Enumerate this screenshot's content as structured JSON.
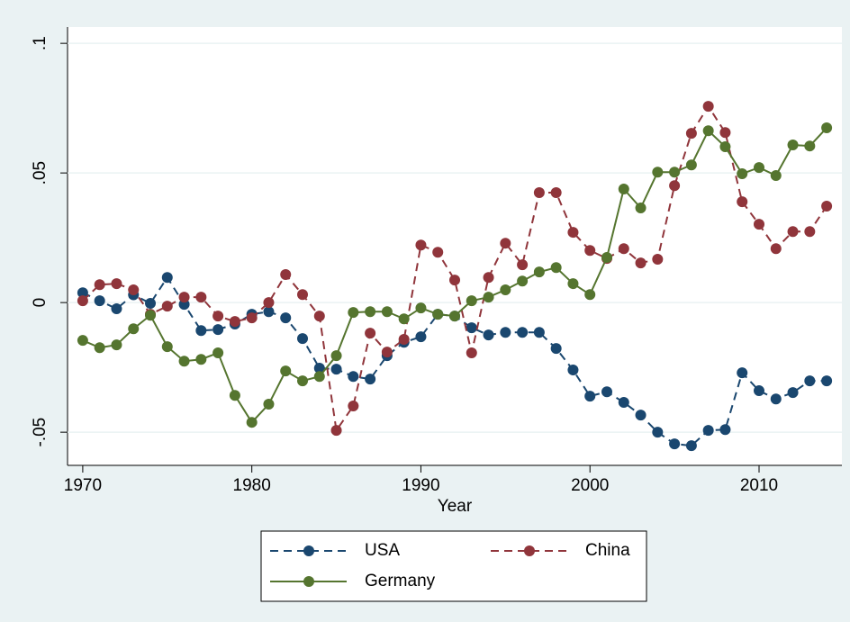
{
  "chart_data": {
    "type": "line",
    "x": [
      1970,
      1971,
      1972,
      1973,
      1974,
      1975,
      1976,
      1977,
      1978,
      1979,
      1980,
      1981,
      1982,
      1983,
      1984,
      1985,
      1986,
      1987,
      1988,
      1989,
      1990,
      1991,
      1992,
      1993,
      1994,
      1995,
      1996,
      1997,
      1998,
      1999,
      2000,
      2001,
      2002,
      2003,
      2004,
      2005,
      2006,
      2007,
      2008,
      2009,
      2010,
      2011,
      2012,
      2013,
      2014
    ],
    "xlabel": "Year",
    "xlim": [
      1969.1,
      2014.9
    ],
    "xticks": [
      1970,
      1980,
      1990,
      2000,
      2010
    ],
    "ylim": [
      -0.0628,
      0.1063
    ],
    "yticks": [
      {
        "value": -0.05,
        "label": "-.05"
      },
      0,
      {
        "value": 0.05,
        "label": ".05"
      },
      {
        "value": 0.1,
        "label": ".1"
      }
    ],
    "grid": true,
    "legend": "bottom",
    "series": [
      {
        "name": "USA",
        "color": "#1a476f",
        "style": "dashed",
        "values": [
          0.0038,
          0.0007,
          -0.0024,
          0.003,
          -0.0003,
          0.0097,
          -0.0007,
          -0.0108,
          -0.0104,
          -0.0083,
          -0.0045,
          -0.0035,
          -0.0059,
          -0.0139,
          -0.0253,
          -0.0257,
          -0.0285,
          -0.0295,
          -0.0205,
          -0.0153,
          -0.0132,
          -0.0045,
          -0.0052,
          -0.0097,
          -0.0125,
          -0.0115,
          -0.0115,
          -0.0115,
          -0.0177,
          -0.026,
          -0.0361,
          -0.0344,
          -0.0385,
          -0.0434,
          -0.05,
          -0.0545,
          -0.0552,
          -0.0493,
          -0.049,
          -0.0271,
          -0.034,
          -0.0372,
          -0.0347,
          -0.0302,
          -0.0302
        ]
      },
      {
        "name": "China",
        "color": "#90353b",
        "style": "dashed",
        "values": [
          0.0007,
          0.0069,
          0.0073,
          0.0049,
          -0.0045,
          -0.0014,
          0.0021,
          0.0021,
          -0.0052,
          -0.0073,
          -0.0059,
          0,
          0.0108,
          0.0031,
          -0.0052,
          -0.0493,
          -0.0399,
          -0.0118,
          -0.0191,
          -0.0142,
          0.0222,
          0.0194,
          0.0087,
          -0.0194,
          0.0097,
          0.0229,
          0.0146,
          0.0424,
          0.0424,
          0.0271,
          0.0201,
          0.017,
          0.0208,
          0.0153,
          0.0167,
          0.0451,
          0.0653,
          0.0757,
          0.0656,
          0.0389,
          0.0302,
          0.0208,
          0.0274,
          0.0274,
          0.0372
        ]
      },
      {
        "name": "Germany",
        "color": "#55752f",
        "style": "solid",
        "values": [
          -0.0146,
          -0.0174,
          -0.0163,
          -0.0101,
          -0.0049,
          -0.017,
          -0.0226,
          -0.0219,
          -0.0194,
          -0.0358,
          -0.0462,
          -0.0392,
          -0.0264,
          -0.0302,
          -0.0285,
          -0.0205,
          -0.0038,
          -0.0035,
          -0.0035,
          -0.0063,
          -0.0021,
          -0.0045,
          -0.0052,
          0.0007,
          0.0021,
          0.0049,
          0.0083,
          0.0118,
          0.0135,
          0.0073,
          0.0031,
          0.0174,
          0.0438,
          0.0365,
          0.0503,
          0.0503,
          0.0531,
          0.0663,
          0.0601,
          0.0497,
          0.0521,
          0.049,
          0.0608,
          0.0604,
          0.0674
        ]
      }
    ]
  }
}
